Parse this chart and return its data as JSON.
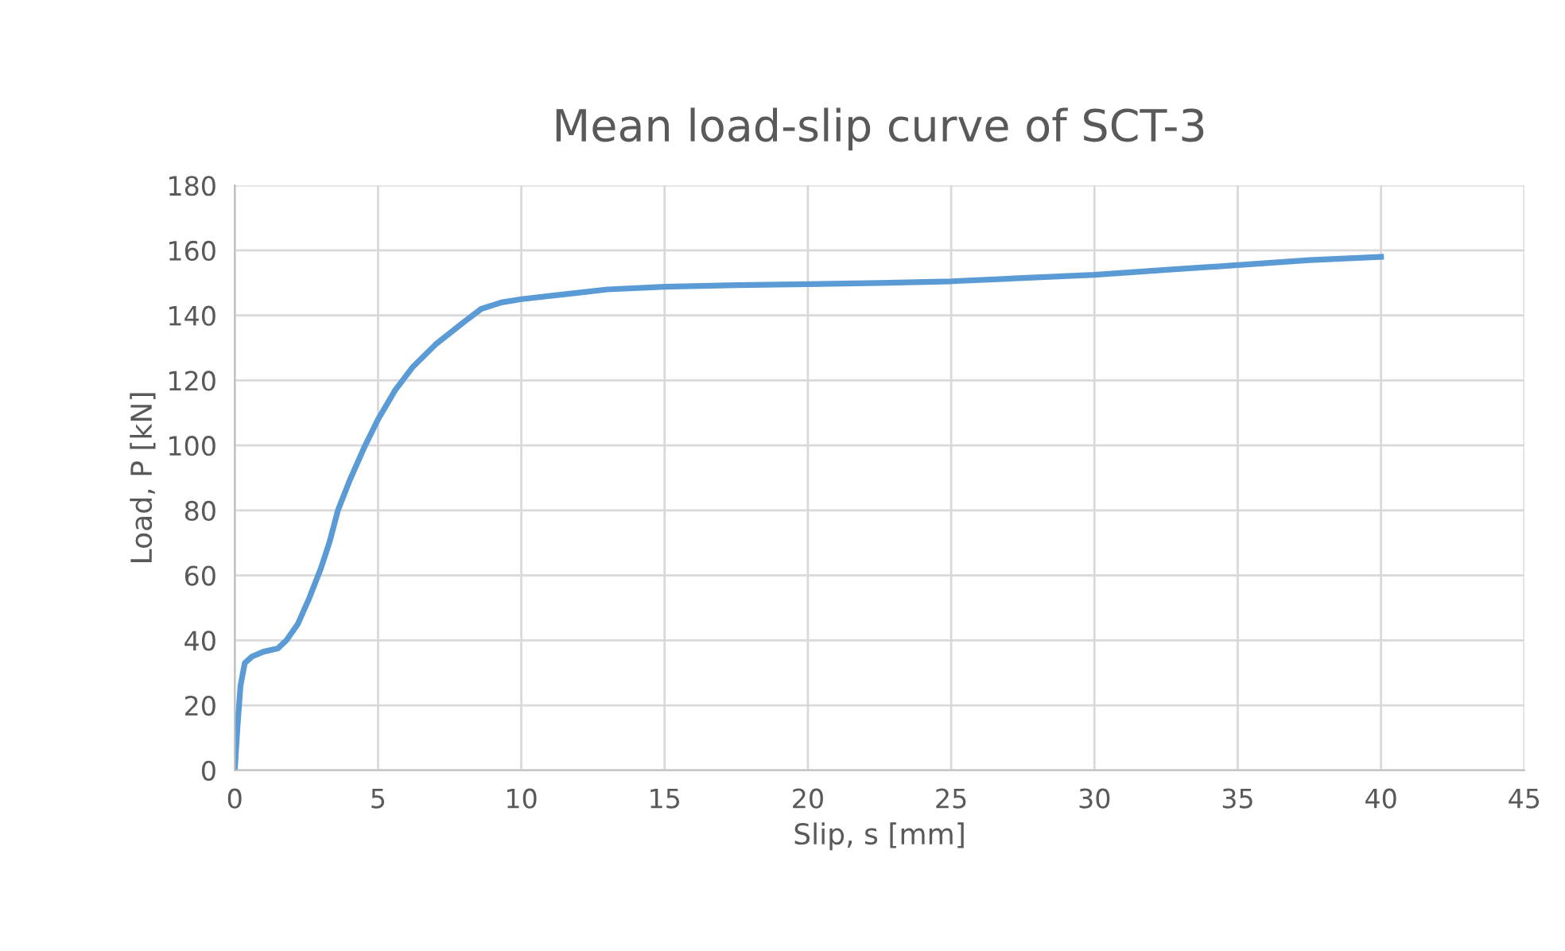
{
  "chart_data": {
    "type": "line",
    "title": "Mean load-slip curve of SCT-3",
    "xlabel": "Slip, s [mm]",
    "ylabel": "Load, P [kN]",
    "series": [
      {
        "color": "#5b9bd5",
        "x": [
          0,
          0.1,
          0.2,
          0.35,
          0.6,
          1.0,
          1.5,
          1.8,
          2.2,
          2.6,
          3.0,
          3.3,
          3.6,
          4.0,
          4.5,
          5.0,
          5.6,
          6.2,
          7.0,
          8.0,
          8.6,
          9.3,
          10.0,
          11.0,
          12.0,
          13.0,
          15.0,
          17.5,
          20.0,
          22.5,
          25.0,
          27.5,
          30.0,
          32.5,
          35.0,
          37.5,
          40.0
        ],
        "values": [
          0,
          14,
          26,
          33,
          35,
          36.5,
          37.5,
          40,
          45,
          53,
          62,
          70,
          80,
          89,
          99,
          108,
          117,
          124,
          131,
          138,
          142,
          144,
          145,
          146,
          147,
          148,
          148.8,
          149.3,
          149.6,
          150,
          150.5,
          151.5,
          152.5,
          154,
          155.5,
          157,
          158
        ]
      }
    ],
    "xlim": [
      0,
      45
    ],
    "xticks": [
      0,
      5,
      10,
      15,
      20,
      25,
      30,
      35,
      40,
      45
    ],
    "ylim": [
      0,
      180
    ],
    "yticks": [
      0,
      20,
      40,
      60,
      80,
      100,
      120,
      140,
      160,
      180
    ],
    "grid": true,
    "marker": "none",
    "line_style": "solid"
  }
}
